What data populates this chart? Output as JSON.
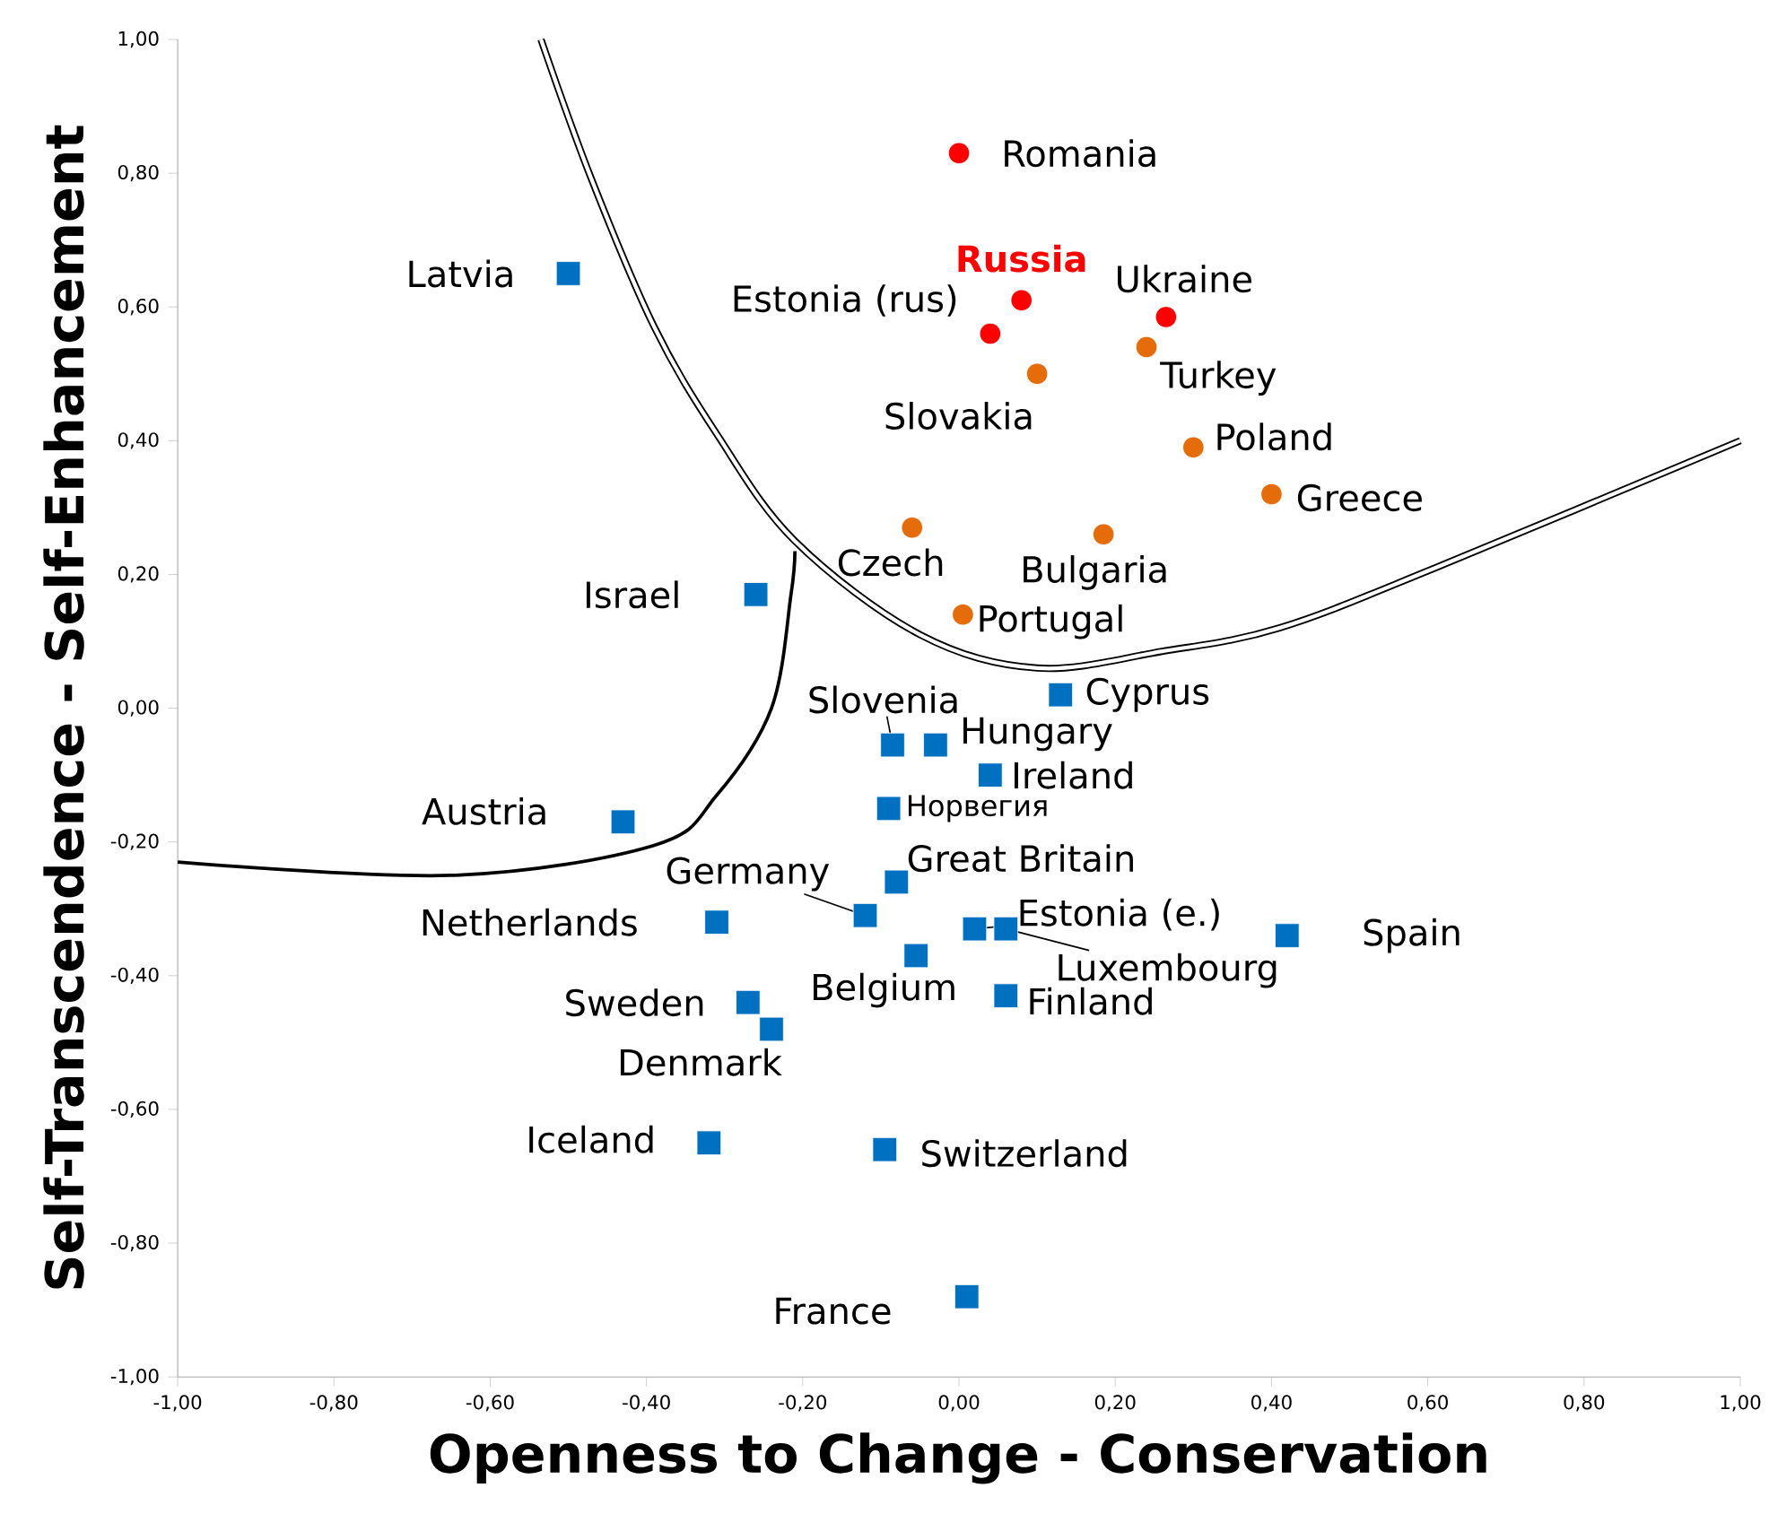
{
  "chart_data": {
    "type": "scatter",
    "xlabel": "Openness to Change - Conservation",
    "ylabel": "Self-Transcendence - Self-Enhancement",
    "xlim": [
      -1,
      1
    ],
    "ylim": [
      -1,
      1
    ],
    "xticks": [
      {
        "value": -1,
        "label": "-1,00"
      },
      {
        "value": -0.8,
        "label": "-0,80"
      },
      {
        "value": -0.6,
        "label": "-0,60"
      },
      {
        "value": -0.4,
        "label": "-0,40"
      },
      {
        "value": -0.2,
        "label": "-0,20"
      },
      {
        "value": 0,
        "label": "0,00"
      },
      {
        "value": 0.2,
        "label": "0,20"
      },
      {
        "value": 0.4,
        "label": "0,40"
      },
      {
        "value": 0.6,
        "label": "0,60"
      },
      {
        "value": 0.8,
        "label": "0,80"
      },
      {
        "value": 1,
        "label": "1,00"
      }
    ],
    "yticks": [
      {
        "value": -1,
        "label": "-1,00"
      },
      {
        "value": -0.8,
        "label": "-0,80"
      },
      {
        "value": -0.6,
        "label": "-0,60"
      },
      {
        "value": -0.4,
        "label": "-0,40"
      },
      {
        "value": -0.2,
        "label": "-0,20"
      },
      {
        "value": 0,
        "label": "0,00"
      },
      {
        "value": 0.2,
        "label": "0,20"
      },
      {
        "value": 0.4,
        "label": "0,40"
      },
      {
        "value": 0.6,
        "label": "0,60"
      },
      {
        "value": 0.8,
        "label": "0,80"
      },
      {
        "value": 1,
        "label": "1,00"
      }
    ],
    "series": [
      {
        "type": "line",
        "color": "#000000",
        "marker": "none",
        "x": [
          -0.535,
          -0.47,
          -0.39,
          -0.31,
          -0.21,
          -0.05,
          0.1,
          0.26,
          0.41,
          0.61,
          1.0
        ],
        "values": [
          1.0,
          0.79,
          0.57,
          0.41,
          0.25,
          0.11,
          0.06,
          0.085,
          0.12,
          0.21,
          0.4
        ]
      },
      {
        "type": "line",
        "color": "#000000",
        "marker": "none",
        "x": [
          -1.0,
          -0.65,
          -0.39,
          -0.31,
          -0.24,
          -0.215,
          -0.21
        ],
        "values": [
          -0.23,
          -0.25,
          -0.205,
          -0.13,
          0.0,
          0.17,
          0.235
        ]
      },
      {
        "type": "scatter",
        "color": "#ff0000",
        "marker": "circle",
        "x": [
          0.0,
          0.08,
          0.04,
          0.265
        ],
        "values": [
          0.83,
          0.61,
          0.56,
          0.585
        ]
      },
      {
        "type": "scatter",
        "color": "#e46c0a",
        "marker": "circle",
        "x": [
          0.1,
          0.24,
          0.3,
          0.4,
          -0.06,
          0.185,
          0.005
        ],
        "values": [
          0.5,
          0.54,
          0.39,
          0.32,
          0.27,
          0.26,
          0.14
        ]
      },
      {
        "type": "scatter",
        "color": "#0070c0",
        "marker": "square",
        "x": [
          -0.5,
          -0.26,
          0.13,
          -0.085,
          -0.03,
          0.04,
          -0.09,
          -0.43,
          -0.08,
          -0.12,
          -0.31,
          0.02,
          0.06,
          0.42,
          -0.055,
          0.06,
          -0.27,
          -0.24,
          -0.32,
          -0.095,
          0.01
        ],
        "values": [
          0.65,
          0.17,
          0.02,
          -0.055,
          -0.055,
          -0.1,
          -0.15,
          -0.17,
          -0.26,
          -0.31,
          -0.32,
          -0.33,
          -0.33,
          -0.34,
          -0.37,
          -0.43,
          -0.44,
          -0.48,
          -0.65,
          -0.66,
          -0.88
        ]
      }
    ],
    "annotations": [
      {
        "text": "Romania",
        "x": 0.0,
        "y": 0.83
      },
      {
        "text": "Russia",
        "x": 0.08,
        "y": 0.61
      },
      {
        "text": "Estonia (rus)",
        "x": 0.04,
        "y": 0.56
      },
      {
        "text": "Ukraine",
        "x": 0.265,
        "y": 0.585
      },
      {
        "text": "Slovakia",
        "x": 0.1,
        "y": 0.5
      },
      {
        "text": "Turkey",
        "x": 0.24,
        "y": 0.54
      },
      {
        "text": "Poland",
        "x": 0.3,
        "y": 0.39
      },
      {
        "text": "Greece",
        "x": 0.4,
        "y": 0.32
      },
      {
        "text": "Czech",
        "x": -0.06,
        "y": 0.27
      },
      {
        "text": "Bulgaria",
        "x": 0.185,
        "y": 0.26
      },
      {
        "text": "Portugal",
        "x": 0.005,
        "y": 0.14
      },
      {
        "text": "Latvia",
        "x": -0.5,
        "y": 0.65
      },
      {
        "text": "Israel",
        "x": -0.26,
        "y": 0.17
      },
      {
        "text": "Cyprus",
        "x": 0.13,
        "y": 0.02
      },
      {
        "text": "Slovenia",
        "x": -0.085,
        "y": -0.055
      },
      {
        "text": "Hungary",
        "x": -0.03,
        "y": -0.055
      },
      {
        "text": "Ireland",
        "x": 0.04,
        "y": -0.1
      },
      {
        "text": "Норвегия",
        "x": -0.09,
        "y": -0.15
      },
      {
        "text": "Austria",
        "x": -0.43,
        "y": -0.17
      },
      {
        "text": "Great Britain",
        "x": -0.08,
        "y": -0.26
      },
      {
        "text": "Germany",
        "x": -0.12,
        "y": -0.31
      },
      {
        "text": "Netherlands",
        "x": -0.31,
        "y": -0.32
      },
      {
        "text": "Estonia (e.)",
        "x": 0.02,
        "y": -0.33
      },
      {
        "text": "Luxembourg",
        "x": 0.06,
        "y": -0.33
      },
      {
        "text": "Spain",
        "x": 0.42,
        "y": -0.34
      },
      {
        "text": "Belgium",
        "x": -0.055,
        "y": -0.37
      },
      {
        "text": "Finland",
        "x": 0.06,
        "y": -0.43
      },
      {
        "text": "Sweden",
        "x": -0.27,
        "y": -0.44
      },
      {
        "text": "Denmark",
        "x": -0.24,
        "y": -0.48
      },
      {
        "text": "Iceland",
        "x": -0.32,
        "y": -0.65
      },
      {
        "text": "Switzerland",
        "x": -0.095,
        "y": -0.66
      },
      {
        "text": "France",
        "x": 0.01,
        "y": -0.88
      }
    ]
  }
}
